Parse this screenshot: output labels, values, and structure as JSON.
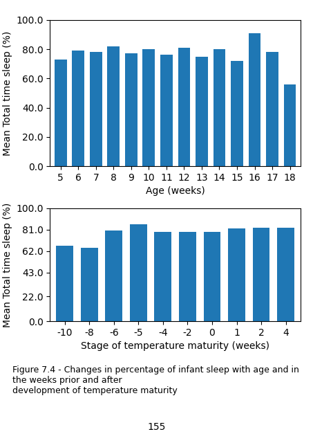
{
  "chart_data": [
    {
      "type": "bar",
      "categories": [
        "5",
        "6",
        "7",
        "8",
        "9",
        "10",
        "11",
        "12",
        "13",
        "14",
        "15",
        "16",
        "17",
        "18"
      ],
      "values": [
        73,
        79,
        78,
        82,
        77,
        80,
        76,
        81,
        75,
        80,
        72,
        91,
        78,
        56
      ],
      "x_label": "Age (weeks)",
      "y_label": "Mean Total time sleep (%)",
      "ylim": [
        0,
        100
      ],
      "yticks": [
        {
          "value": 0,
          "label": "0.0"
        },
        {
          "value": 20,
          "label": "20.0"
        },
        {
          "value": 40,
          "label": "40.0"
        },
        {
          "value": 60,
          "label": "60.0"
        },
        {
          "value": 80,
          "label": "80.0"
        },
        {
          "value": 100,
          "label": "100.0"
        }
      ]
    },
    {
      "type": "bar",
      "categories": [
        "-10",
        "-8",
        "-6",
        "-5",
        "-4",
        "-2",
        "0",
        "1",
        "2",
        "4"
      ],
      "values": [
        67,
        65,
        80,
        86,
        79,
        79,
        79,
        82,
        83,
        83
      ],
      "x_label": "Stage of temperature maturity (weeks)",
      "y_label": "Mean Total time sleep (%)",
      "ylim": [
        0,
        100
      ],
      "yticks": [
        {
          "value": 0,
          "label": "0.0"
        },
        {
          "value": 22,
          "label": "22.0"
        },
        {
          "value": 43,
          "label": "43.0"
        },
        {
          "value": 62,
          "label": "62.0"
        },
        {
          "value": 81,
          "label": "81.0"
        },
        {
          "value": 100,
          "label": "100.0"
        }
      ]
    }
  ],
  "caption": "Figure 7.4 - Changes in percentage of infant sleep with age and in the weeks prior and after\ndevelopment of temperature maturity",
  "page_number": "155"
}
